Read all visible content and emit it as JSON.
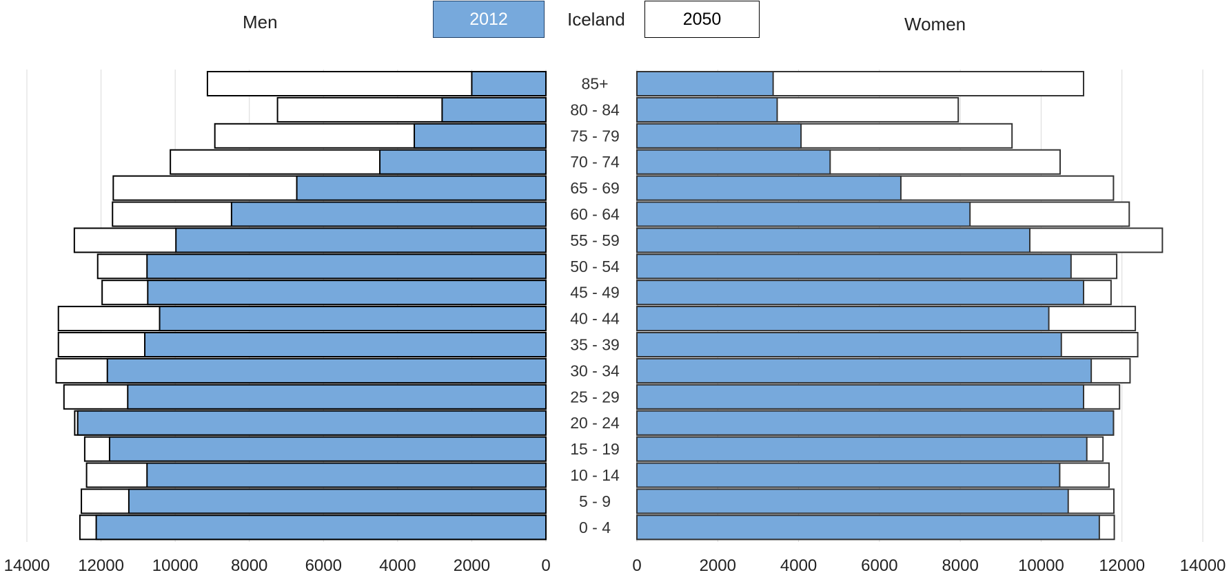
{
  "chart_data": {
    "type": "bar",
    "title": "Iceland",
    "left_label": "Men",
    "right_label": "Women",
    "categories": [
      "85+",
      "80 - 84",
      "75 - 79",
      "70 - 74",
      "65 - 69",
      "60 - 64",
      "55 - 59",
      "50 - 54",
      "45 - 49",
      "40 - 44",
      "35 - 39",
      "30 - 34",
      "25 - 29",
      "20 - 24",
      "15 - 19",
      "10 - 14",
      "5 - 9",
      "0 - 4"
    ],
    "series": [
      {
        "name": "2012",
        "color": "#77a9dc",
        "men": [
          2000,
          2800,
          3550,
          4480,
          6720,
          8480,
          9980,
          10760,
          10740,
          10420,
          10820,
          11830,
          11280,
          12630,
          11770,
          10760,
          11250,
          12130
        ],
        "women": [
          3370,
          3470,
          4060,
          4780,
          6530,
          8240,
          9720,
          10740,
          11050,
          10190,
          10500,
          11240,
          11050,
          11790,
          11130,
          10460,
          10670,
          11440
        ]
      },
      {
        "name": "2050",
        "color": "#ffffff",
        "men": [
          9130,
          7240,
          8930,
          10130,
          11670,
          11690,
          12720,
          12090,
          11970,
          13150,
          13150,
          13210,
          13000,
          12710,
          12440,
          12390,
          12530,
          12570
        ],
        "women": [
          11050,
          7950,
          9280,
          10470,
          11790,
          12180,
          13000,
          11870,
          11730,
          12330,
          12390,
          12200,
          11940,
          11790,
          11530,
          11680,
          11800,
          11810
        ]
      }
    ],
    "axis": {
      "ticks_men": [
        "14000",
        "12000",
        "10000",
        "8000",
        "6000",
        "4000",
        "2000",
        "0"
      ],
      "ticks_women": [
        "0",
        "2000",
        "4000",
        "6000",
        "8000",
        "10000",
        "12000",
        "14000"
      ],
      "max": 14000
    },
    "grid": true,
    "legend": "top-center"
  }
}
